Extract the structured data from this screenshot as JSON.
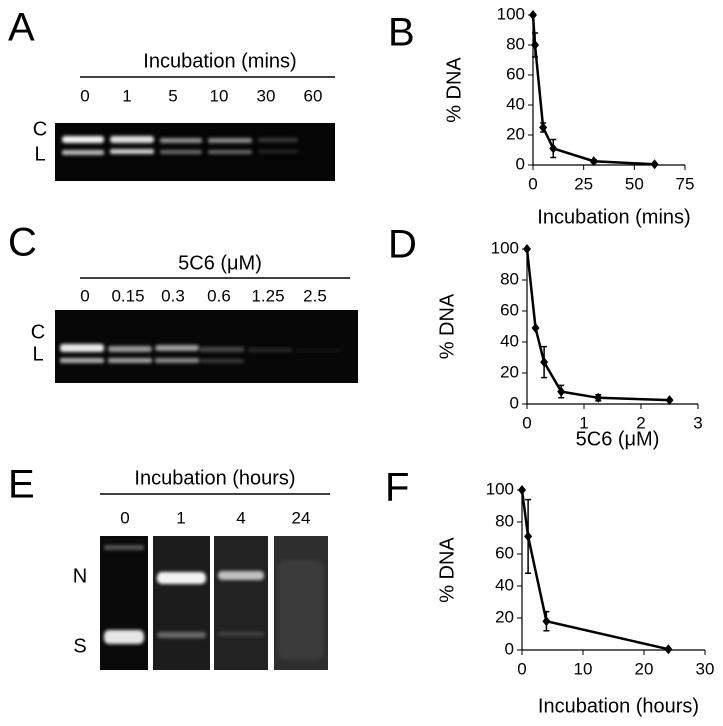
{
  "panel_labels": [
    "A",
    "B",
    "C",
    "D",
    "E",
    "F"
  ],
  "gels": [
    {
      "title": "Incubation (mins)",
      "lanes": [
        "0",
        "1",
        "5",
        "10",
        "30",
        "60"
      ],
      "bands": [
        "C",
        "L"
      ]
    },
    {
      "title": "5C6 (μM)",
      "lanes": [
        "0",
        "0.15",
        "0.3",
        "0.6",
        "1.25",
        "2.5"
      ],
      "bands": [
        "C",
        "L"
      ]
    },
    {
      "title": "Incubation (hours)",
      "lanes": [
        "0",
        "1",
        "4",
        "24"
      ],
      "bands": [
        "N",
        "S"
      ]
    }
  ],
  "chart_data": [
    {
      "type": "line",
      "ylabel": "% DNA",
      "xlabel": "Incubation (mins)",
      "color": "#000000",
      "x": [
        0,
        1,
        5,
        10,
        30,
        60
      ],
      "values": [
        100,
        80,
        25,
        11,
        2.5,
        0.5
      ],
      "errors": [
        null,
        8,
        3,
        6,
        1,
        null
      ],
      "xlim": [
        0,
        75
      ],
      "xticks": [
        0,
        25,
        50,
        75
      ],
      "ylim": [
        0,
        100
      ],
      "yticks": [
        0,
        20,
        40,
        60,
        80,
        100
      ]
    },
    {
      "type": "line",
      "ylabel": "% DNA",
      "xlabel": "5C6 (μM)",
      "color": "#000000",
      "x": [
        0,
        0.15,
        0.3,
        0.6,
        1.25,
        2.5
      ],
      "values": [
        100,
        49,
        27,
        8,
        4,
        2.5
      ],
      "errors": [
        null,
        null,
        10,
        4,
        2,
        null
      ],
      "xlim": [
        0,
        3
      ],
      "xticks": [
        0,
        1,
        2,
        3
      ],
      "ylim": [
        0,
        100
      ],
      "yticks": [
        0,
        20,
        40,
        60,
        80,
        100
      ]
    },
    {
      "type": "line",
      "ylabel": "% DNA",
      "xlabel": "Incubation (hours)",
      "color": "#000000",
      "x": [
        0,
        1,
        4,
        24
      ],
      "values": [
        100,
        71,
        18,
        0.5
      ],
      "errors": [
        null,
        23,
        6,
        null
      ],
      "xlim": [
        0,
        30
      ],
      "xticks": [
        0,
        10,
        20,
        30
      ],
      "ylim": [
        0,
        100
      ],
      "yticks": [
        0,
        20,
        40,
        60,
        80,
        100
      ]
    }
  ]
}
